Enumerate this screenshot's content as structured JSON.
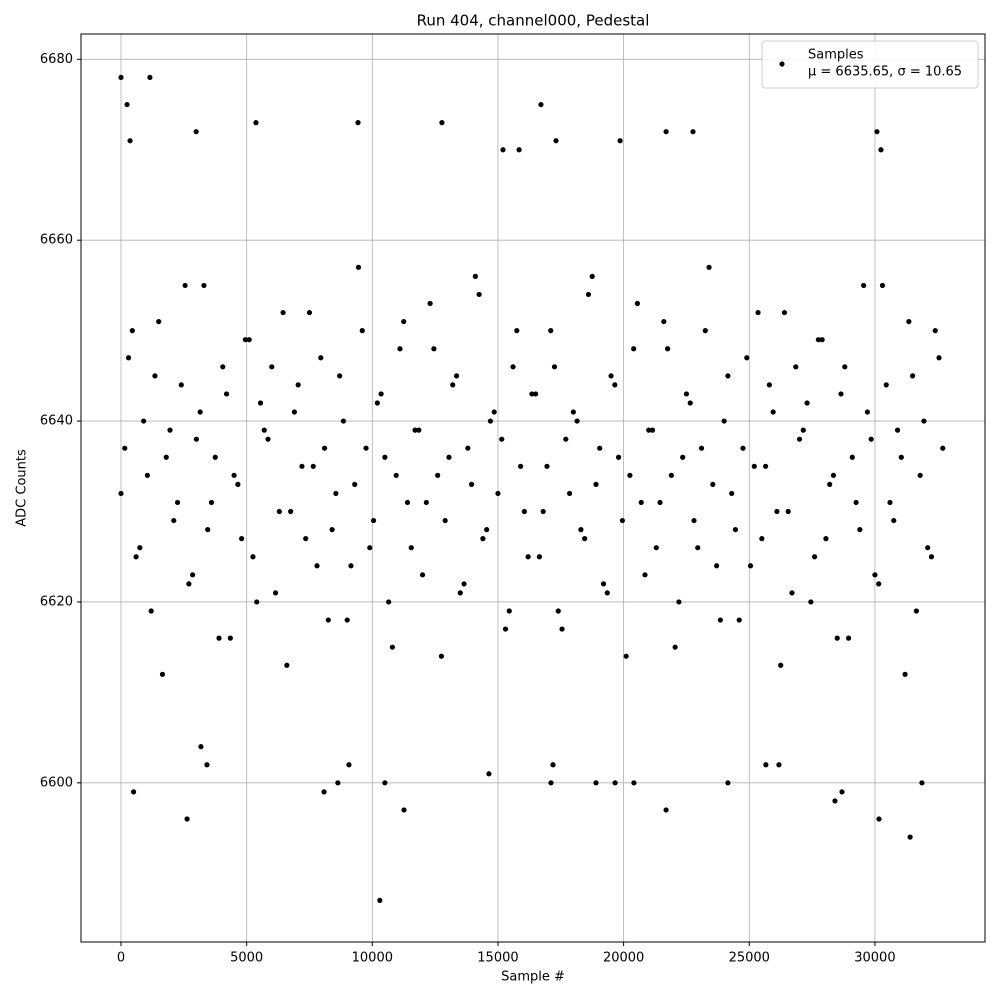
{
  "chart_data": {
    "type": "scatter",
    "title": "Run 404, channel000, Pedestal",
    "xlabel": "Sample #",
    "ylabel": "ADC Counts",
    "xlim": [
      -1592,
      34380
    ],
    "ylim": [
      6582.4,
      6682.8
    ],
    "xticks": [
      0,
      5000,
      10000,
      15000,
      20000,
      25000,
      30000
    ],
    "yticks": [
      6600,
      6620,
      6640,
      6660,
      6680
    ],
    "grid": true,
    "legend_position": "upper right",
    "series": [
      {
        "name": "Samples",
        "note": "μ = 6635.65, σ = 10.65",
        "color": "#000000",
        "x": [
          0,
          300,
          600,
          900,
          1200,
          1500,
          1800,
          2100,
          2400,
          2700,
          3000,
          3300,
          3600,
          3900,
          4200,
          4500,
          4800,
          5100,
          5400,
          5700,
          6000,
          6300,
          6600,
          6900,
          7200,
          7500,
          7800,
          8100,
          8400,
          8700,
          9000,
          9300,
          9600,
          9900,
          10200,
          10500,
          10800,
          11100,
          11400,
          11700,
          12000,
          12300,
          12600,
          12900,
          13200,
          13500,
          13800,
          14100,
          14400,
          14700,
          15000,
          15300,
          15600,
          15900,
          16200,
          16500,
          16800,
          17100,
          17400,
          17700,
          18000,
          18300,
          18600,
          18900,
          19200,
          19500,
          19800,
          20100,
          20400,
          20700,
          21000,
          21300,
          21600,
          21900,
          22200,
          22500,
          22800,
          23100,
          23400,
          23700,
          24000,
          24300,
          24600,
          24900,
          25200,
          25500,
          25800,
          26100,
          26400,
          26700,
          27000,
          27300,
          27600,
          27900,
          28200,
          28500,
          28800,
          29100,
          29400,
          29700,
          30000,
          30300,
          30600,
          30900,
          31200,
          31500,
          31800,
          32100,
          32400,
          32700,
          150,
          450,
          750,
          1050,
          1350,
          1650,
          1950,
          2250,
          2550,
          2850,
          3150,
          3450,
          3750,
          4050,
          4350,
          4650,
          4950,
          5250,
          5550,
          5850,
          6150,
          6450,
          6750,
          7050,
          7350,
          7650,
          7950,
          8250,
          8550,
          8850,
          9150,
          9450,
          9750,
          10050,
          10350,
          10650,
          10950,
          11250,
          11550,
          11850,
          12150,
          12450,
          12750,
          13050,
          13350,
          13650,
          13950,
          14250,
          14550,
          14850,
          15150,
          15450,
          15750,
          16050,
          16350,
          16650,
          16950,
          17250,
          17550,
          17850,
          18150,
          18450,
          18750,
          19050,
          19350,
          19650,
          19950,
          20250,
          20550,
          20850,
          21150,
          21450,
          21750,
          22050,
          22350,
          22650,
          22950,
          23250,
          23550,
          23850,
          24150,
          24450,
          24750,
          25050,
          25350,
          25650,
          25950,
          26250,
          26550,
          26850,
          27150,
          27450,
          27750,
          28050,
          28350,
          28650,
          28950,
          29250,
          29550,
          29850,
          30150,
          30450,
          30750,
          31050,
          31350,
          31650,
          31950,
          32250,
          32550,
          0,
          240,
          360,
          1150,
          500,
          2630,
          10300,
          11260,
          8080,
          8630,
          10500,
          12770,
          9430,
          5370,
          2990,
          16710,
          21690,
          22760,
          30080,
          31400,
          30160,
          21690,
          28410,
          28690,
          18900,
          19660,
          20410,
          24150,
          31870,
          14640,
          17110,
          3420,
          9070,
          17190,
          25660,
          26180,
          3180,
          19860,
          15200,
          15840,
          17310,
          30240
        ],
        "values": [
          6632,
          6647,
          6625,
          6640,
          6619,
          6651,
          6636,
          6629,
          6644,
          6622,
          6638,
          6655,
          6631,
          6616,
          6643,
          6634,
          6627,
          6649,
          6620,
          6639,
          6646,
          6630,
          6613,
          6641,
          6635,
          6652,
          6624,
          6637,
          6628,
          6645,
          6618,
          6633,
          6650,
          6626,
          6642,
          6636,
          6615,
          6648,
          6631,
          6639,
          6623,
          6653,
          6634,
          6629,
          6644,
          6621,
          6637,
          6656,
          6627,
          6640,
          6632,
          6617,
          6646,
          6635,
          6625,
          6643,
          6630,
          6650,
          6619,
          6638,
          6641,
          6628,
          6654,
          6633,
          6622,
          6645,
          6636,
          6614,
          6648,
          6631,
          6639,
          6626,
          6651,
          6634,
          6620,
          6643,
          6629,
          6637,
          6657,
          6624,
          6640,
          6632,
          6618,
          6647,
          6635,
          6627,
          6644,
          6630,
          6652,
          6621,
          6638,
          6642,
          6625,
          6649,
          6633,
          6616,
          6646,
          6636,
          6628,
          6641,
          6623,
          6655,
          6631,
          6639,
          6612,
          6645,
          6634,
          6626,
          6650,
          6637,
          6637,
          6650,
          6626,
          6634,
          6645,
          6612,
          6639,
          6631,
          6655,
          6623,
          6641,
          6628,
          6636,
          6646,
          6616,
          6633,
          6649,
          6625,
          6642,
          6638,
          6621,
          6652,
          6630,
          6644,
          6627,
          6635,
          6647,
          6618,
          6632,
          6640,
          6624,
          6657,
          6637,
          6629,
          6643,
          6620,
          6634,
          6651,
          6626,
          6639,
          6631,
          6648,
          6614,
          6636,
          6645,
          6622,
          6633,
          6654,
          6628,
          6641,
          6638,
          6619,
          6650,
          6630,
          6643,
          6625,
          6635,
          6646,
          6617,
          6632,
          6640,
          6627,
          6656,
          6637,
          6621,
          6644,
          6629,
          6634,
          6653,
          6623,
          6639,
          6631,
          6648,
          6615,
          6636,
          6642,
          6626,
          6650,
          6633,
          6618,
          6645,
          6628,
          6637,
          6624,
          6652,
          6635,
          6641,
          6613,
          6630,
          6646,
          6639,
          6620,
          6649,
          6627,
          6634,
          6643,
          6616,
          6631,
          6655,
          6638,
          6622,
          6644,
          6629,
          6636,
          6651,
          6619,
          6640,
          6625,
          6647,
          6678,
          6675,
          6671,
          6678,
          6599,
          6596,
          6587,
          6597,
          6599,
          6600,
          6600,
          6673,
          6673,
          6673,
          6672,
          6675,
          6672,
          6672,
          6672,
          6594,
          6596,
          6597,
          6598,
          6599,
          6600,
          6600,
          6600,
          6600,
          6600,
          6601,
          6600,
          6602,
          6602,
          6602,
          6602,
          6602,
          6604,
          6671,
          6670,
          6670,
          6671,
          6670
        ]
      }
    ]
  }
}
